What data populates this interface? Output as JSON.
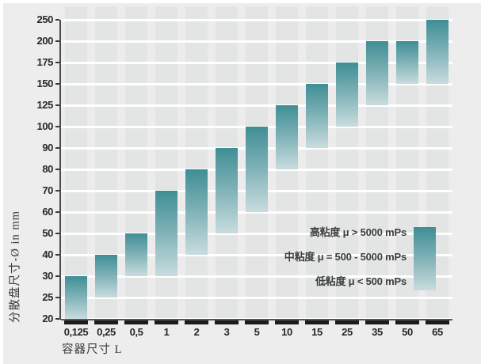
{
  "chart_data": {
    "type": "bar",
    "subtype": "floating-range-bars",
    "orientation": "vertical",
    "title": "",
    "xlabel": "容器尺寸 L",
    "ylabel": "分散盘尺寸-Ø in mm",
    "categories": [
      "0,125",
      "0,25",
      "0,5",
      "1",
      "2",
      "3",
      "5",
      "10",
      "15",
      "25",
      "35",
      "50",
      "65"
    ],
    "y_ticks": [
      250,
      200,
      175,
      150,
      125,
      100,
      90,
      80,
      70,
      60,
      50,
      40,
      30,
      25,
      20
    ],
    "y_scale": "ordinal-equal-spacing",
    "grid": "white gridlines on gray tiled background",
    "series": [
      {
        "name": "dispersion-disc-diameter-range-mm",
        "ranges": [
          [
            20,
            30
          ],
          [
            25,
            40
          ],
          [
            30,
            50
          ],
          [
            30,
            70
          ],
          [
            40,
            80
          ],
          [
            50,
            90
          ],
          [
            60,
            100
          ],
          [
            80,
            125
          ],
          [
            90,
            150
          ],
          [
            100,
            175
          ],
          [
            125,
            200
          ],
          [
            150,
            200
          ],
          [
            150,
            250
          ]
        ]
      }
    ],
    "legend": {
      "position": "inside-bottom-right",
      "items": [
        {
          "label": "高粘度 μ > 5000 mPs"
        },
        {
          "label": "中粘度 μ = 500 - 5000 mPs"
        },
        {
          "label": "低粘度 μ < 500 mPs"
        }
      ],
      "swatch": "vertical gradient dark-teal (top) to light (bottom)"
    },
    "colors": {
      "bar_gradient_top": "#3f8e95",
      "bar_gradient_mid": "#7aafb4",
      "bar_gradient_bottom": "#c9dcde",
      "plot_cell": "#e3e4e4",
      "plot_gutter": "#ebeceb",
      "page_background": "#ecedec",
      "gridline": "#ffffff",
      "axis_text": "#26282a",
      "tick_dash": "#1b1b1b"
    }
  }
}
